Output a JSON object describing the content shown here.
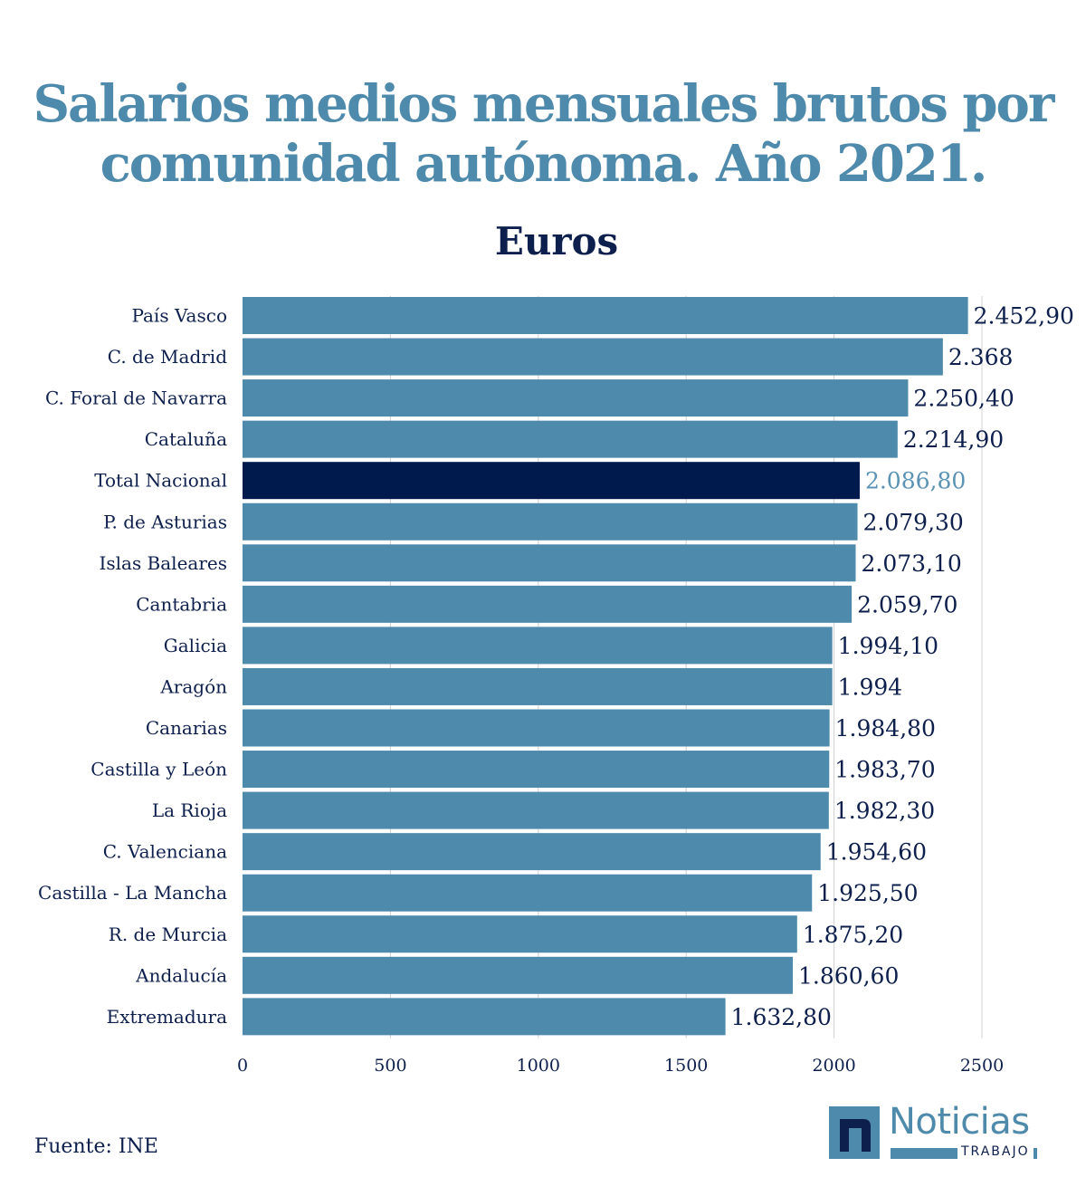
{
  "chart_data": {
    "type": "bar",
    "orientation": "horizontal",
    "title": "Salarios medios mensuales brutos por comunidad autónoma. Año 2021.",
    "subtitle": "Euros",
    "categories": [
      "País Vasco",
      "C. de Madrid",
      "C. Foral de Navarra",
      "Cataluña",
      "Total Nacional",
      "P. de Asturias",
      "Islas Baleares",
      "Cantabria",
      "Galicia",
      "Aragón",
      "Canarias",
      "Castilla y León",
      "La Rioja",
      "C. Valenciana",
      "Castilla - La Mancha",
      "R. de Murcia",
      "Andalucía",
      "Extremadura"
    ],
    "values": [
      2452.9,
      2368,
      2250.4,
      2214.9,
      2086.8,
      2079.3,
      2073.1,
      2059.7,
      1994.1,
      1994,
      1984.8,
      1983.7,
      1982.3,
      1954.6,
      1925.5,
      1875.2,
      1860.6,
      1632.8
    ],
    "value_labels": [
      "2.452,90",
      "2.368",
      "2.250,40",
      "2.214,90",
      "2.086,80",
      "2.079,30",
      "2.073,10",
      "2.059,70",
      "1.994,10",
      "1.994",
      "1.984,80",
      "1.983,70",
      "1.982,30",
      "1.954,60",
      "1.925,50",
      "1.875,20",
      "1.860,60",
      "1.632,80"
    ],
    "highlight_category": "Total Nacional",
    "xlim": [
      0,
      2500
    ],
    "xticks": [
      0,
      500,
      1000,
      1500,
      2000,
      2500
    ],
    "grid": "vertical",
    "colors": {
      "bar": "#4e8aab",
      "highlight_bar": "#001a4d",
      "highlight_label": "#5b93b5",
      "label": "#0d1f4d",
      "title": "#4e8aab",
      "subtitle": "#0d1f4d",
      "grid": "#d0d0d0"
    }
  },
  "source": "Fuente: INE",
  "logo": {
    "name": "noticias-trabajo-logo",
    "text": "Noticias",
    "subtext": "TRABAJO"
  }
}
